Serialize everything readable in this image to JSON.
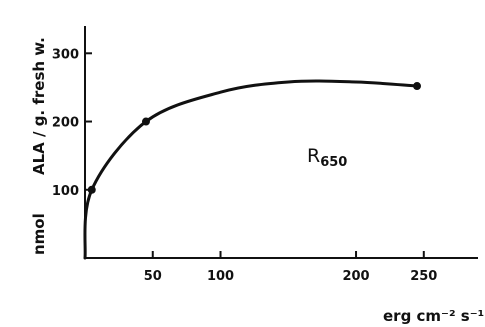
{
  "chart_data": {
    "type": "line",
    "x": [
      0,
      5,
      45,
      100,
      150,
      200,
      245
    ],
    "y": [
      0,
      100,
      200,
      243,
      258,
      258,
      252
    ],
    "markers": [
      {
        "x": 5,
        "y": 100
      },
      {
        "x": 45,
        "y": 200
      },
      {
        "x": 245,
        "y": 252
      }
    ],
    "xlabel": "erg cm⁻² s⁻¹",
    "ylabel_unit": "nmol",
    "ylabel": "ALA / g. fresh w.",
    "annotation": {
      "main": "R",
      "sub": "650"
    },
    "xticks": [
      "50",
      "100",
      "200",
      "250"
    ],
    "xtick_values": [
      50,
      100,
      200,
      250
    ],
    "yticks": [
      "100",
      "200",
      "300"
    ],
    "ytick_values": [
      100,
      200,
      300
    ],
    "xlim": [
      0,
      290
    ],
    "ylim": [
      0,
      340
    ],
    "grid": false,
    "legend": "none"
  }
}
